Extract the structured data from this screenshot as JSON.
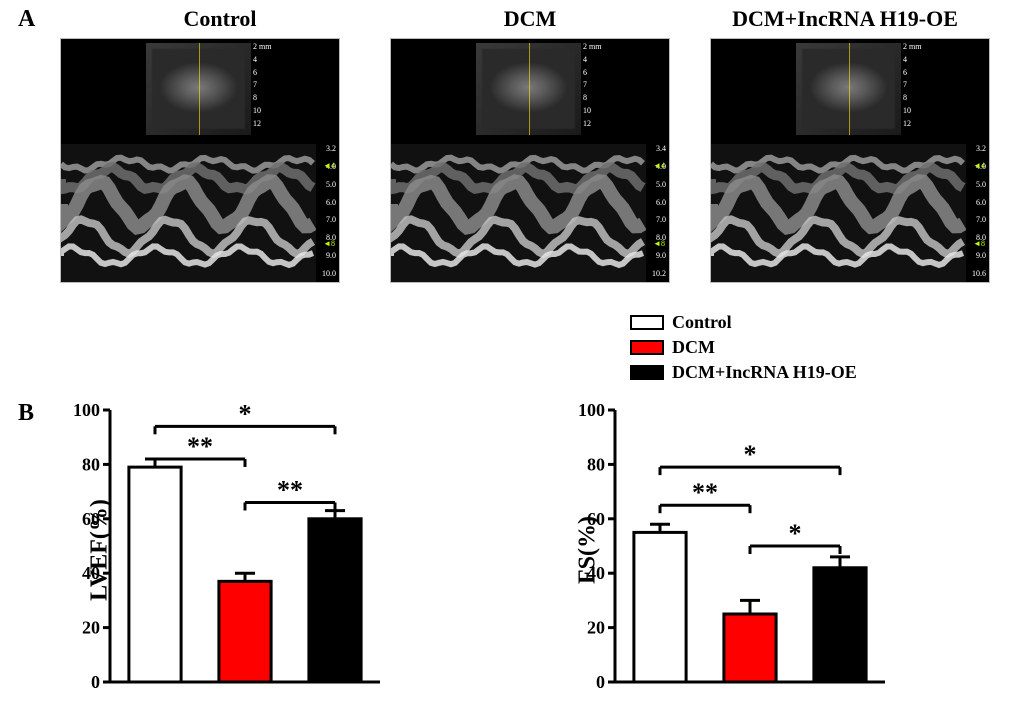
{
  "panelA": {
    "label": "A",
    "groups": [
      {
        "title": "Control",
        "bmode_scale": [
          "2 mm",
          "4",
          "6",
          "7",
          "8",
          "10",
          "12"
        ],
        "mmode_scale": [
          "3.2",
          "4.0",
          "5.0",
          "6.0",
          "7.0",
          "8.0",
          "9.0",
          "10.0"
        ],
        "mmode_markers": [
          "4",
          "8"
        ]
      },
      {
        "title": "DCM",
        "bmode_scale": [
          "2 mm",
          "4",
          "6",
          "7",
          "8",
          "10",
          "12"
        ],
        "mmode_scale": [
          "3.4",
          "4.0",
          "5.0",
          "6.0",
          "7.0",
          "8.0",
          "9.0",
          "10.2"
        ],
        "mmode_markers": [
          "4",
          "8"
        ]
      },
      {
        "title": "DCM+IncRNA H19-OE",
        "bmode_scale": [
          "2 mm",
          "4",
          "6",
          "7",
          "8",
          "10",
          "12"
        ],
        "mmode_scale": [
          "3.2",
          "4.0",
          "5.0",
          "6.0",
          "7.0",
          "8.0",
          "9.0",
          "10.6"
        ],
        "mmode_markers": [
          "4",
          "8"
        ]
      }
    ],
    "colors": {
      "panel_bg": "#000000",
      "scale_text": "#ffffff",
      "marker": "#c3ff00"
    }
  },
  "legend": {
    "items": [
      {
        "label": "Control",
        "fill": "#ffffff"
      },
      {
        "label": "DCM",
        "fill": "#fe0000"
      },
      {
        "label": "DCM+IncRNA H19-OE",
        "fill": "#000000"
      }
    ]
  },
  "panelB": {
    "label": "B",
    "charts": [
      {
        "ylabel": "LVEF(%)",
        "ylim": [
          0,
          100
        ],
        "ytick_step": 20,
        "bars": [
          {
            "value": 79,
            "err": 3,
            "fill": "#ffffff"
          },
          {
            "value": 37,
            "err": 3,
            "fill": "#fe0000"
          },
          {
            "value": 60,
            "err": 3,
            "fill": "#000000"
          }
        ],
        "sig": [
          {
            "from": 0,
            "to": 2,
            "y": 94,
            "label": "*"
          },
          {
            "from": 0,
            "to": 1,
            "y": 82,
            "label": "**"
          },
          {
            "from": 1,
            "to": 2,
            "y": 66,
            "label": "**"
          }
        ]
      },
      {
        "ylabel": "FS(%)",
        "ylim": [
          0,
          100
        ],
        "ytick_step": 20,
        "bars": [
          {
            "value": 55,
            "err": 3,
            "fill": "#ffffff"
          },
          {
            "value": 25,
            "err": 5,
            "fill": "#fe0000"
          },
          {
            "value": 42,
            "err": 4,
            "fill": "#000000"
          }
        ],
        "sig": [
          {
            "from": 0,
            "to": 2,
            "y": 79,
            "label": "*"
          },
          {
            "from": 0,
            "to": 1,
            "y": 65,
            "label": "**"
          },
          {
            "from": 1,
            "to": 2,
            "y": 50,
            "label": "*"
          }
        ]
      }
    ],
    "style": {
      "axis_width": 3,
      "bar_width": 0.58,
      "tick_len": 7,
      "cap_width": 10,
      "font_axis": 18,
      "font_label": 24
    }
  }
}
